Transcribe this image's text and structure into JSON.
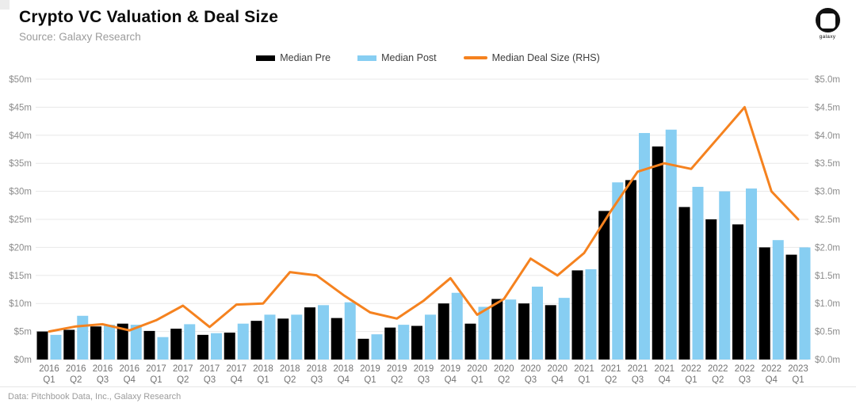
{
  "header": {
    "title": "Crypto VC Valuation & Deal Size",
    "subtitle": "Source: Galaxy Research",
    "logo_text": "galaxy"
  },
  "footer": {
    "text": "Data: Pitchbook Data, Inc., Galaxy Research"
  },
  "colors": {
    "median_pre": "#000000",
    "median_post": "#87CEF2",
    "deal_size_line": "#F5821F",
    "gridline": "#E8E8E8",
    "tick_text": "#8C8C8C",
    "xlabel_text": "#737373"
  },
  "chart_data": {
    "type": "bar",
    "title": "Crypto VC Valuation & Deal Size",
    "categories": [
      "2016 Q1",
      "2016 Q2",
      "2016 Q3",
      "2016 Q4",
      "2017 Q1",
      "2017 Q2",
      "2017 Q3",
      "2017 Q4",
      "2018 Q1",
      "2018 Q2",
      "2018 Q3",
      "2018 Q4",
      "2019 Q1",
      "2019 Q2",
      "2019 Q3",
      "2019 Q4",
      "2020 Q1",
      "2020 Q2",
      "2020 Q3",
      "2020 Q4",
      "2021 Q1",
      "2021 Q2",
      "2021 Q3",
      "2021 Q4",
      "2022 Q1",
      "2022 Q2",
      "2022 Q3",
      "2022 Q4",
      "2023 Q1"
    ],
    "series": [
      {
        "name": "Median Pre",
        "type": "bar",
        "axis": "left",
        "color": "#000000",
        "values": [
          5.0,
          5.3,
          5.9,
          6.4,
          5.1,
          5.5,
          4.4,
          4.8,
          6.9,
          7.3,
          9.3,
          7.4,
          3.7,
          5.7,
          6.0,
          10.0,
          6.4,
          10.8,
          10.0,
          9.7,
          15.9,
          26.5,
          32.0,
          38.0,
          27.2,
          25.0,
          24.1,
          20.0,
          18.7
        ]
      },
      {
        "name": "Median Post",
        "type": "bar",
        "axis": "left",
        "color": "#87CEF2",
        "values": [
          4.4,
          7.8,
          6.2,
          6.2,
          4.0,
          6.3,
          4.7,
          6.4,
          8.0,
          8.0,
          9.7,
          10.2,
          4.5,
          6.2,
          8.0,
          11.9,
          9.4,
          10.7,
          13.0,
          11.0,
          16.1,
          31.6,
          40.4,
          41.0,
          30.8,
          30.0,
          30.5,
          21.3,
          20.0
        ]
      },
      {
        "name": "Median Deal Size (RHS)",
        "type": "line",
        "axis": "right",
        "color": "#F5821F",
        "values": [
          0.5,
          0.59,
          0.63,
          0.52,
          0.7,
          0.96,
          0.58,
          0.98,
          1.0,
          1.56,
          1.5,
          1.15,
          0.84,
          0.73,
          1.05,
          1.45,
          0.8,
          1.08,
          1.8,
          1.5,
          1.9,
          2.65,
          3.35,
          3.5,
          3.4,
          3.95,
          4.5,
          3.0,
          2.5
        ]
      }
    ],
    "left_axis": {
      "min": 0,
      "max": 50,
      "step": 5,
      "ticks": [
        "$0m",
        "$5m",
        "$10m",
        "$15m",
        "$20m",
        "$25m",
        "$30m",
        "$35m",
        "$40m",
        "$45m",
        "$50m"
      ]
    },
    "right_axis": {
      "min": 0,
      "max": 5,
      "step": 0.5,
      "ticks": [
        "$0.0m",
        "$0.5m",
        "$1.0m",
        "$1.5m",
        "$2.0m",
        "$2.5m",
        "$3.0m",
        "$3.5m",
        "$4.0m",
        "$4.5m",
        "$5.0m"
      ]
    },
    "grid": true,
    "legend_position": "top"
  }
}
